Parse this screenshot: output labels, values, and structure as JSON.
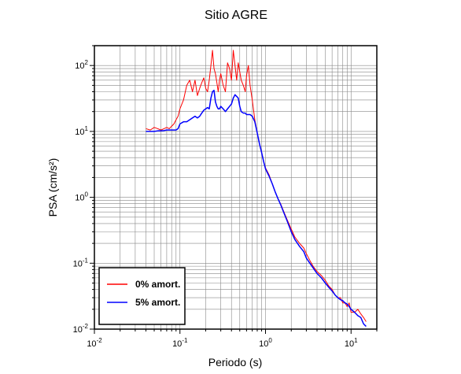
{
  "chart_data": {
    "type": "line",
    "title": "Sitio AGRE",
    "xlabel": "Periodo (s)",
    "ylabel": "PSA (cm/s²)",
    "xscale": "log",
    "yscale": "log",
    "xlim": [
      0.01,
      20
    ],
    "ylim": [
      0.01,
      200
    ],
    "grid": true,
    "legend_placement": "bottom-left",
    "x_ticks": [
      {
        "value": 0.01,
        "base": "10",
        "exp": "-2"
      },
      {
        "value": 0.1,
        "base": "10",
        "exp": "-1"
      },
      {
        "value": 1,
        "base": "10",
        "exp": "0"
      },
      {
        "value": 10,
        "base": "10",
        "exp": "1"
      }
    ],
    "y_ticks": [
      {
        "value": 0.01,
        "base": "10",
        "exp": "-2"
      },
      {
        "value": 0.1,
        "base": "10",
        "exp": "-1"
      },
      {
        "value": 1,
        "base": "10",
        "exp": "0"
      },
      {
        "value": 10,
        "base": "10",
        "exp": "1"
      },
      {
        "value": 100,
        "base": "10",
        "exp": "2"
      }
    ],
    "series": [
      {
        "name": "0% amort.",
        "color": "#ff0000",
        "x": [
          0.04,
          0.045,
          0.05,
          0.055,
          0.06,
          0.065,
          0.07,
          0.075,
          0.08,
          0.085,
          0.09,
          0.095,
          0.1,
          0.11,
          0.12,
          0.13,
          0.14,
          0.15,
          0.16,
          0.17,
          0.18,
          0.19,
          0.2,
          0.21,
          0.22,
          0.23,
          0.24,
          0.25,
          0.26,
          0.27,
          0.28,
          0.29,
          0.3,
          0.32,
          0.34,
          0.36,
          0.38,
          0.4,
          0.42,
          0.44,
          0.46,
          0.48,
          0.5,
          0.52,
          0.55,
          0.58,
          0.6,
          0.63,
          0.66,
          0.7,
          0.75,
          0.8,
          0.85,
          0.9,
          0.95,
          1.0,
          1.1,
          1.2,
          1.3,
          1.4,
          1.5,
          1.6,
          1.8,
          2.0,
          2.2,
          2.5,
          2.8,
          3.0,
          3.3,
          3.6,
          4.0,
          4.5,
          5.0,
          5.5,
          6.0,
          6.5,
          7.0,
          7.5,
          8.0,
          8.5,
          9.0,
          9.5,
          10.0,
          11.0,
          12.0,
          13.0,
          14.0,
          15.0
        ],
        "y": [
          11,
          10.5,
          11.5,
          11,
          10.5,
          11,
          11.5,
          11,
          12,
          13,
          15,
          17,
          22,
          30,
          50,
          60,
          40,
          60,
          35,
          45,
          55,
          65,
          45,
          40,
          60,
          100,
          170,
          90,
          75,
          55,
          40,
          60,
          75,
          50,
          40,
          110,
          90,
          60,
          170,
          100,
          60,
          110,
          80,
          60,
          50,
          40,
          70,
          100,
          50,
          30,
          15,
          9.5,
          6.5,
          4.8,
          3.5,
          2.8,
          2.2,
          1.6,
          1.2,
          0.95,
          0.8,
          0.65,
          0.45,
          0.33,
          0.25,
          0.2,
          0.17,
          0.14,
          0.11,
          0.09,
          0.075,
          0.065,
          0.055,
          0.045,
          0.04,
          0.033,
          0.03,
          0.03,
          0.025,
          0.025,
          0.022,
          0.025,
          0.018,
          0.018,
          0.02,
          0.017,
          0.015,
          0.013
        ]
      },
      {
        "name": "5% amort.",
        "color": "#0000ff",
        "x": [
          0.04,
          0.045,
          0.05,
          0.055,
          0.06,
          0.065,
          0.07,
          0.075,
          0.08,
          0.085,
          0.09,
          0.095,
          0.1,
          0.11,
          0.12,
          0.13,
          0.14,
          0.15,
          0.16,
          0.17,
          0.18,
          0.19,
          0.2,
          0.21,
          0.22,
          0.23,
          0.24,
          0.25,
          0.26,
          0.27,
          0.28,
          0.29,
          0.3,
          0.32,
          0.34,
          0.36,
          0.38,
          0.4,
          0.42,
          0.44,
          0.46,
          0.48,
          0.5,
          0.52,
          0.55,
          0.58,
          0.6,
          0.63,
          0.66,
          0.7,
          0.75,
          0.8,
          0.85,
          0.9,
          0.95,
          1.0,
          1.1,
          1.2,
          1.3,
          1.4,
          1.5,
          1.6,
          1.8,
          2.0,
          2.2,
          2.5,
          2.8,
          3.0,
          3.3,
          3.6,
          4.0,
          4.5,
          5.0,
          5.5,
          6.0,
          6.5,
          7.0,
          7.5,
          8.0,
          8.5,
          9.0,
          9.5,
          10.0,
          11.0,
          12.0,
          13.0,
          14.0,
          15.0
        ],
        "y": [
          10,
          10,
          10,
          10.2,
          10.2,
          10.3,
          10.5,
          10.5,
          10.5,
          10.5,
          10.5,
          11,
          13,
          14,
          14,
          15,
          16,
          17,
          16,
          17,
          19,
          21,
          22,
          23,
          22,
          32,
          40,
          42,
          28,
          24,
          22,
          22,
          24,
          22,
          20,
          22,
          24,
          26,
          32,
          36,
          34,
          32,
          24,
          20,
          19,
          19,
          18,
          18,
          18,
          17,
          14,
          9.5,
          6.5,
          4.8,
          3.5,
          2.7,
          2.1,
          1.6,
          1.2,
          0.95,
          0.78,
          0.63,
          0.43,
          0.3,
          0.23,
          0.18,
          0.15,
          0.12,
          0.1,
          0.085,
          0.07,
          0.06,
          0.05,
          0.043,
          0.038,
          0.033,
          0.03,
          0.028,
          0.027,
          0.025,
          0.024,
          0.022,
          0.02,
          0.018,
          0.016,
          0.015,
          0.012,
          0.011
        ]
      }
    ]
  }
}
